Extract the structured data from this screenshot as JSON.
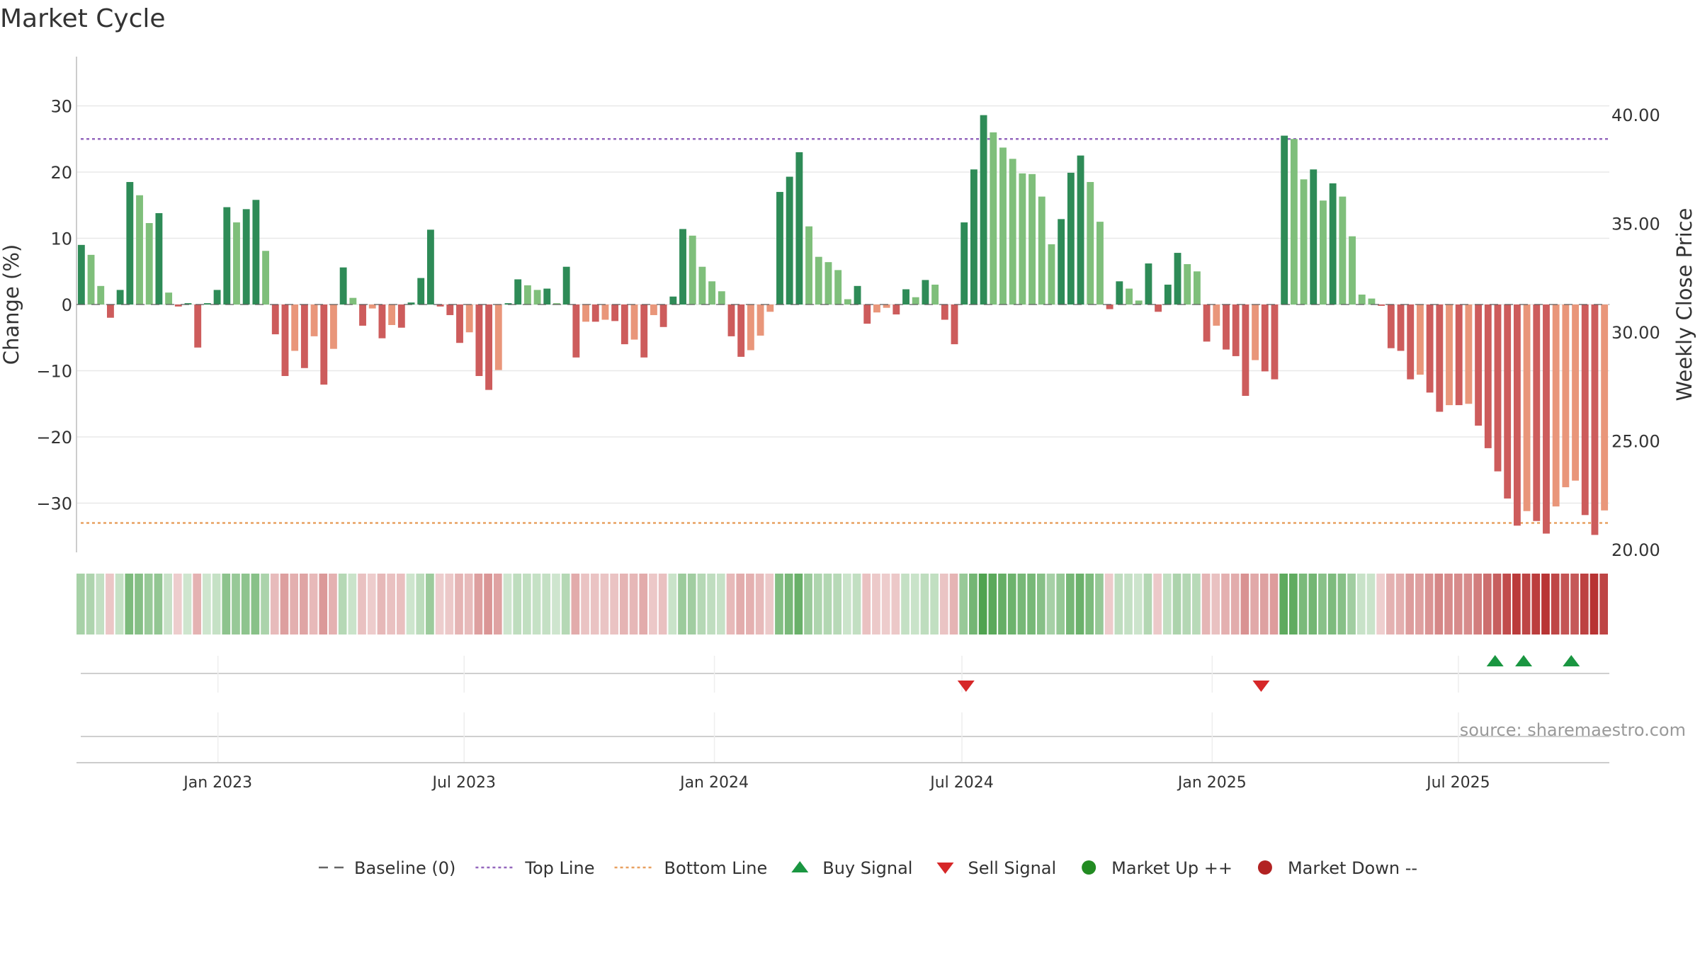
{
  "chart_data": {
    "type": "bar",
    "title": "Market Cycle",
    "ylabel": "Change (%)",
    "y2label": "Weekly Close Price",
    "source": "source: sharemaestro.com",
    "ylim": [
      -37,
      37
    ],
    "y2lim": [
      20.0,
      43.5
    ],
    "yticks": [
      30,
      20,
      10,
      0,
      -10,
      -20,
      -30
    ],
    "ytick_labels": [
      "30",
      "20",
      "10",
      "0",
      "−10",
      "−20",
      "−30"
    ],
    "y2ticks": [
      40.0,
      35.0,
      30.0,
      25.0,
      20.0
    ],
    "y2tick_labels": [
      "40.00",
      "35.00",
      "30.00",
      "25.00",
      "20.00"
    ],
    "top_line": 25,
    "bottom_line": -33,
    "x_start": "2022-09-19",
    "x_end": "2025-10-20",
    "xtick_dates": [
      "2023-01-01",
      "2023-07-01",
      "2024-01-01",
      "2024-07-01",
      "2025-01-01",
      "2025-07-01"
    ],
    "xtick_labels": [
      "Jan 2023",
      "Jul 2023",
      "Jan 2024",
      "Jul 2024",
      "Jan 2025",
      "Jul 2025"
    ],
    "colors": {
      "up_strong": "#2e8b57",
      "up_light": "#7fbf7b",
      "down_strong": "#cd5c5c",
      "down_light": "#e9967a",
      "top_line": "#9467bd",
      "bottom_line": "#e8a060",
      "buy": "#1a9641",
      "sell": "#d62728",
      "market_up": "#228b22",
      "market_down": "#b22222"
    },
    "series": [
      {
        "values": [
          9,
          7.5,
          2.8,
          -2,
          2.2,
          18.5,
          16.5,
          12.3,
          13.8,
          1.8,
          -0.3,
          0.2,
          -6.5,
          0.2,
          2.2,
          14.7,
          12.4,
          14.4,
          15.8,
          8.1,
          -4.5,
          -10.8,
          -7,
          -9.6,
          -4.8,
          -12.1,
          -6.7,
          5.6,
          1,
          -3.2,
          -0.6,
          -5.1,
          -3.1,
          -3.5,
          0.3,
          4,
          11.3,
          -0.3,
          -1.6,
          -5.8,
          -4.2,
          -10.8,
          -12.9,
          -9.9,
          0.2,
          3.8,
          2.9,
          2.2,
          2.4,
          0.2,
          5.7,
          -8,
          -2.6,
          -2.6,
          -2.3,
          -2.5,
          -6,
          -5.3,
          -8,
          -1.6,
          -3.4,
          1.2,
          11.4,
          10.4,
          5.7,
          3.5,
          2,
          -4.8,
          -7.9,
          -6.9,
          -4.7,
          -1.1,
          17,
          19.3,
          23,
          11.8,
          7.2,
          6.4,
          5.2,
          0.8,
          2.8,
          -2.9,
          -1.2,
          -0.5,
          -1.5,
          2.3,
          1.1,
          3.7,
          3,
          -2.3,
          -6,
          12.4,
          20.4,
          28.6,
          26,
          23.7,
          22,
          19.8,
          19.7,
          16.3,
          9.1,
          12.9,
          19.9,
          22.5,
          18.5,
          12.5,
          -0.7,
          3.5,
          2.4,
          0.6,
          6.2,
          -1.1,
          3,
          7.8,
          6.1,
          5,
          -5.6,
          -3.2,
          -6.8,
          -7.8,
          -13.8,
          -8.4,
          -10.1,
          -11.3,
          25.5,
          25,
          18.9,
          20.4,
          15.7,
          18.3,
          16.3,
          10.3,
          1.5,
          0.9,
          -0.2,
          -6.6,
          -7,
          -11.3,
          -10.6,
          -13.3,
          -16.2,
          -15.2,
          -15.2,
          -15,
          -18.3,
          -21.7,
          -25.2,
          -29.3,
          -33.4,
          -31.2,
          -32.7,
          -34.6,
          -30.5,
          -27.6,
          -26.6,
          -31.8,
          -34.8,
          -31.1
        ]
      }
    ],
    "buy_signals": [
      "2025-07-28",
      "2025-08-18",
      "2025-09-22"
    ],
    "sell_signals": [
      "2024-07-04",
      "2025-02-06"
    ],
    "legend_position": "bottom-center",
    "legend": [
      {
        "label": "Baseline (0)",
        "marker": "dashed-line"
      },
      {
        "label": "Top Line",
        "marker": "dotted-line-purple"
      },
      {
        "label": "Bottom Line",
        "marker": "dotted-line-orange"
      },
      {
        "label": "Buy Signal",
        "marker": "triangle-up"
      },
      {
        "label": "Sell Signal",
        "marker": "triangle-down"
      },
      {
        "label": "Market Up ++",
        "marker": "circle-green"
      },
      {
        "label": "Market Down --",
        "marker": "circle-red"
      }
    ]
  }
}
